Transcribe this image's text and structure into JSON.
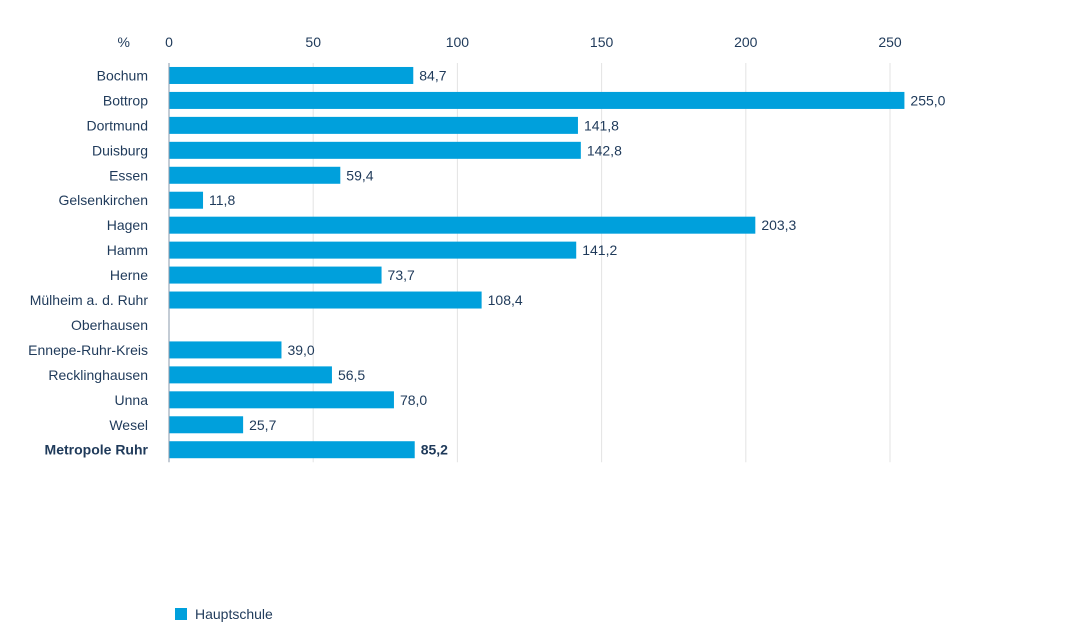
{
  "chart_data": {
    "type": "bar",
    "orientation": "horizontal",
    "unit_label": "%",
    "categories": [
      "Bochum",
      "Bottrop",
      "Dortmund",
      "Duisburg",
      "Essen",
      "Gelsenkirchen",
      "Hagen",
      "Hamm",
      "Herne",
      "Mülheim a. d. Ruhr",
      "Oberhausen",
      "Ennepe-Ruhr-Kreis",
      "Recklinghausen",
      "Unna",
      "Wesel",
      "Metropole Ruhr"
    ],
    "highlight_category": "Metropole Ruhr",
    "series": [
      {
        "name": "Hauptschule",
        "values": [
          84.7,
          255.0,
          141.8,
          142.8,
          59.4,
          11.8,
          203.3,
          141.2,
          73.7,
          108.4,
          null,
          39.0,
          56.5,
          78.0,
          25.7,
          85.2
        ],
        "labels": [
          "84,7",
          "255,0",
          "141,8",
          "142,8",
          "59,4",
          "11,8",
          "203,3",
          "141,2",
          "73,7",
          "108,4",
          "",
          "39,0",
          "56,5",
          "78,0",
          "25,7",
          "85,2"
        ]
      }
    ],
    "xlim": [
      0,
      275
    ],
    "xticks": [
      0,
      50,
      100,
      150,
      200,
      250
    ],
    "xtick_labels": [
      "0",
      "50",
      "100",
      "150",
      "200",
      "250"
    ],
    "grid": true,
    "legend_position": "bottom-left",
    "colors": {
      "bar": "#00a0dc",
      "text": "#1f3a5a",
      "grid": "#e3e3e3",
      "axis": "#8a9aab"
    }
  },
  "legend": {
    "label": "Hauptschule"
  }
}
